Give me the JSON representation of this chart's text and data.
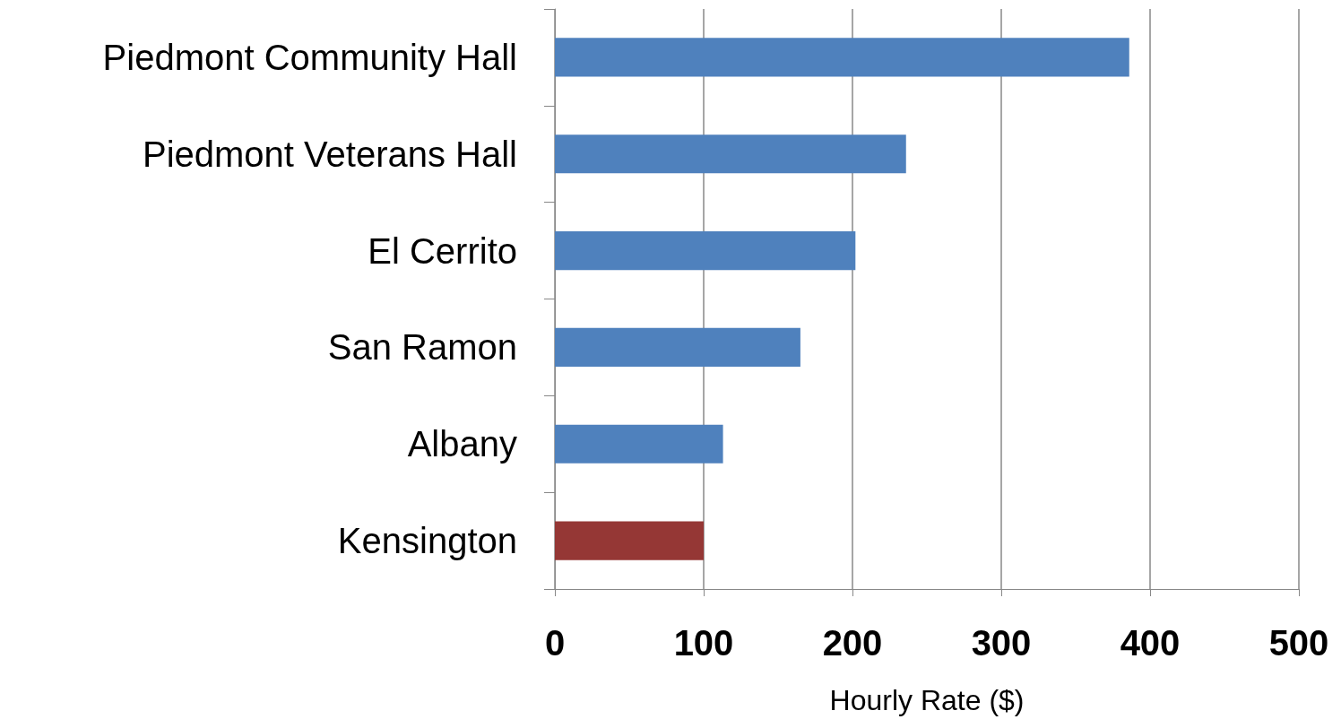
{
  "chart_data": {
    "type": "bar",
    "orientation": "horizontal",
    "xlabel": "Hourly Rate ($)",
    "categories": [
      "Piedmont Community Hall",
      "Piedmont Veterans Hall",
      "El Cerrito",
      "San Ramon",
      "Albany",
      "Kensington"
    ],
    "values": [
      386,
      236,
      202,
      165,
      113,
      100
    ],
    "colors": [
      "#4f81bd",
      "#4f81bd",
      "#4f81bd",
      "#4f81bd",
      "#4f81bd",
      "#953735"
    ],
    "xlim": [
      0,
      500
    ],
    "xticks": [
      0,
      100,
      200,
      300,
      400,
      500
    ],
    "grid": "x"
  }
}
